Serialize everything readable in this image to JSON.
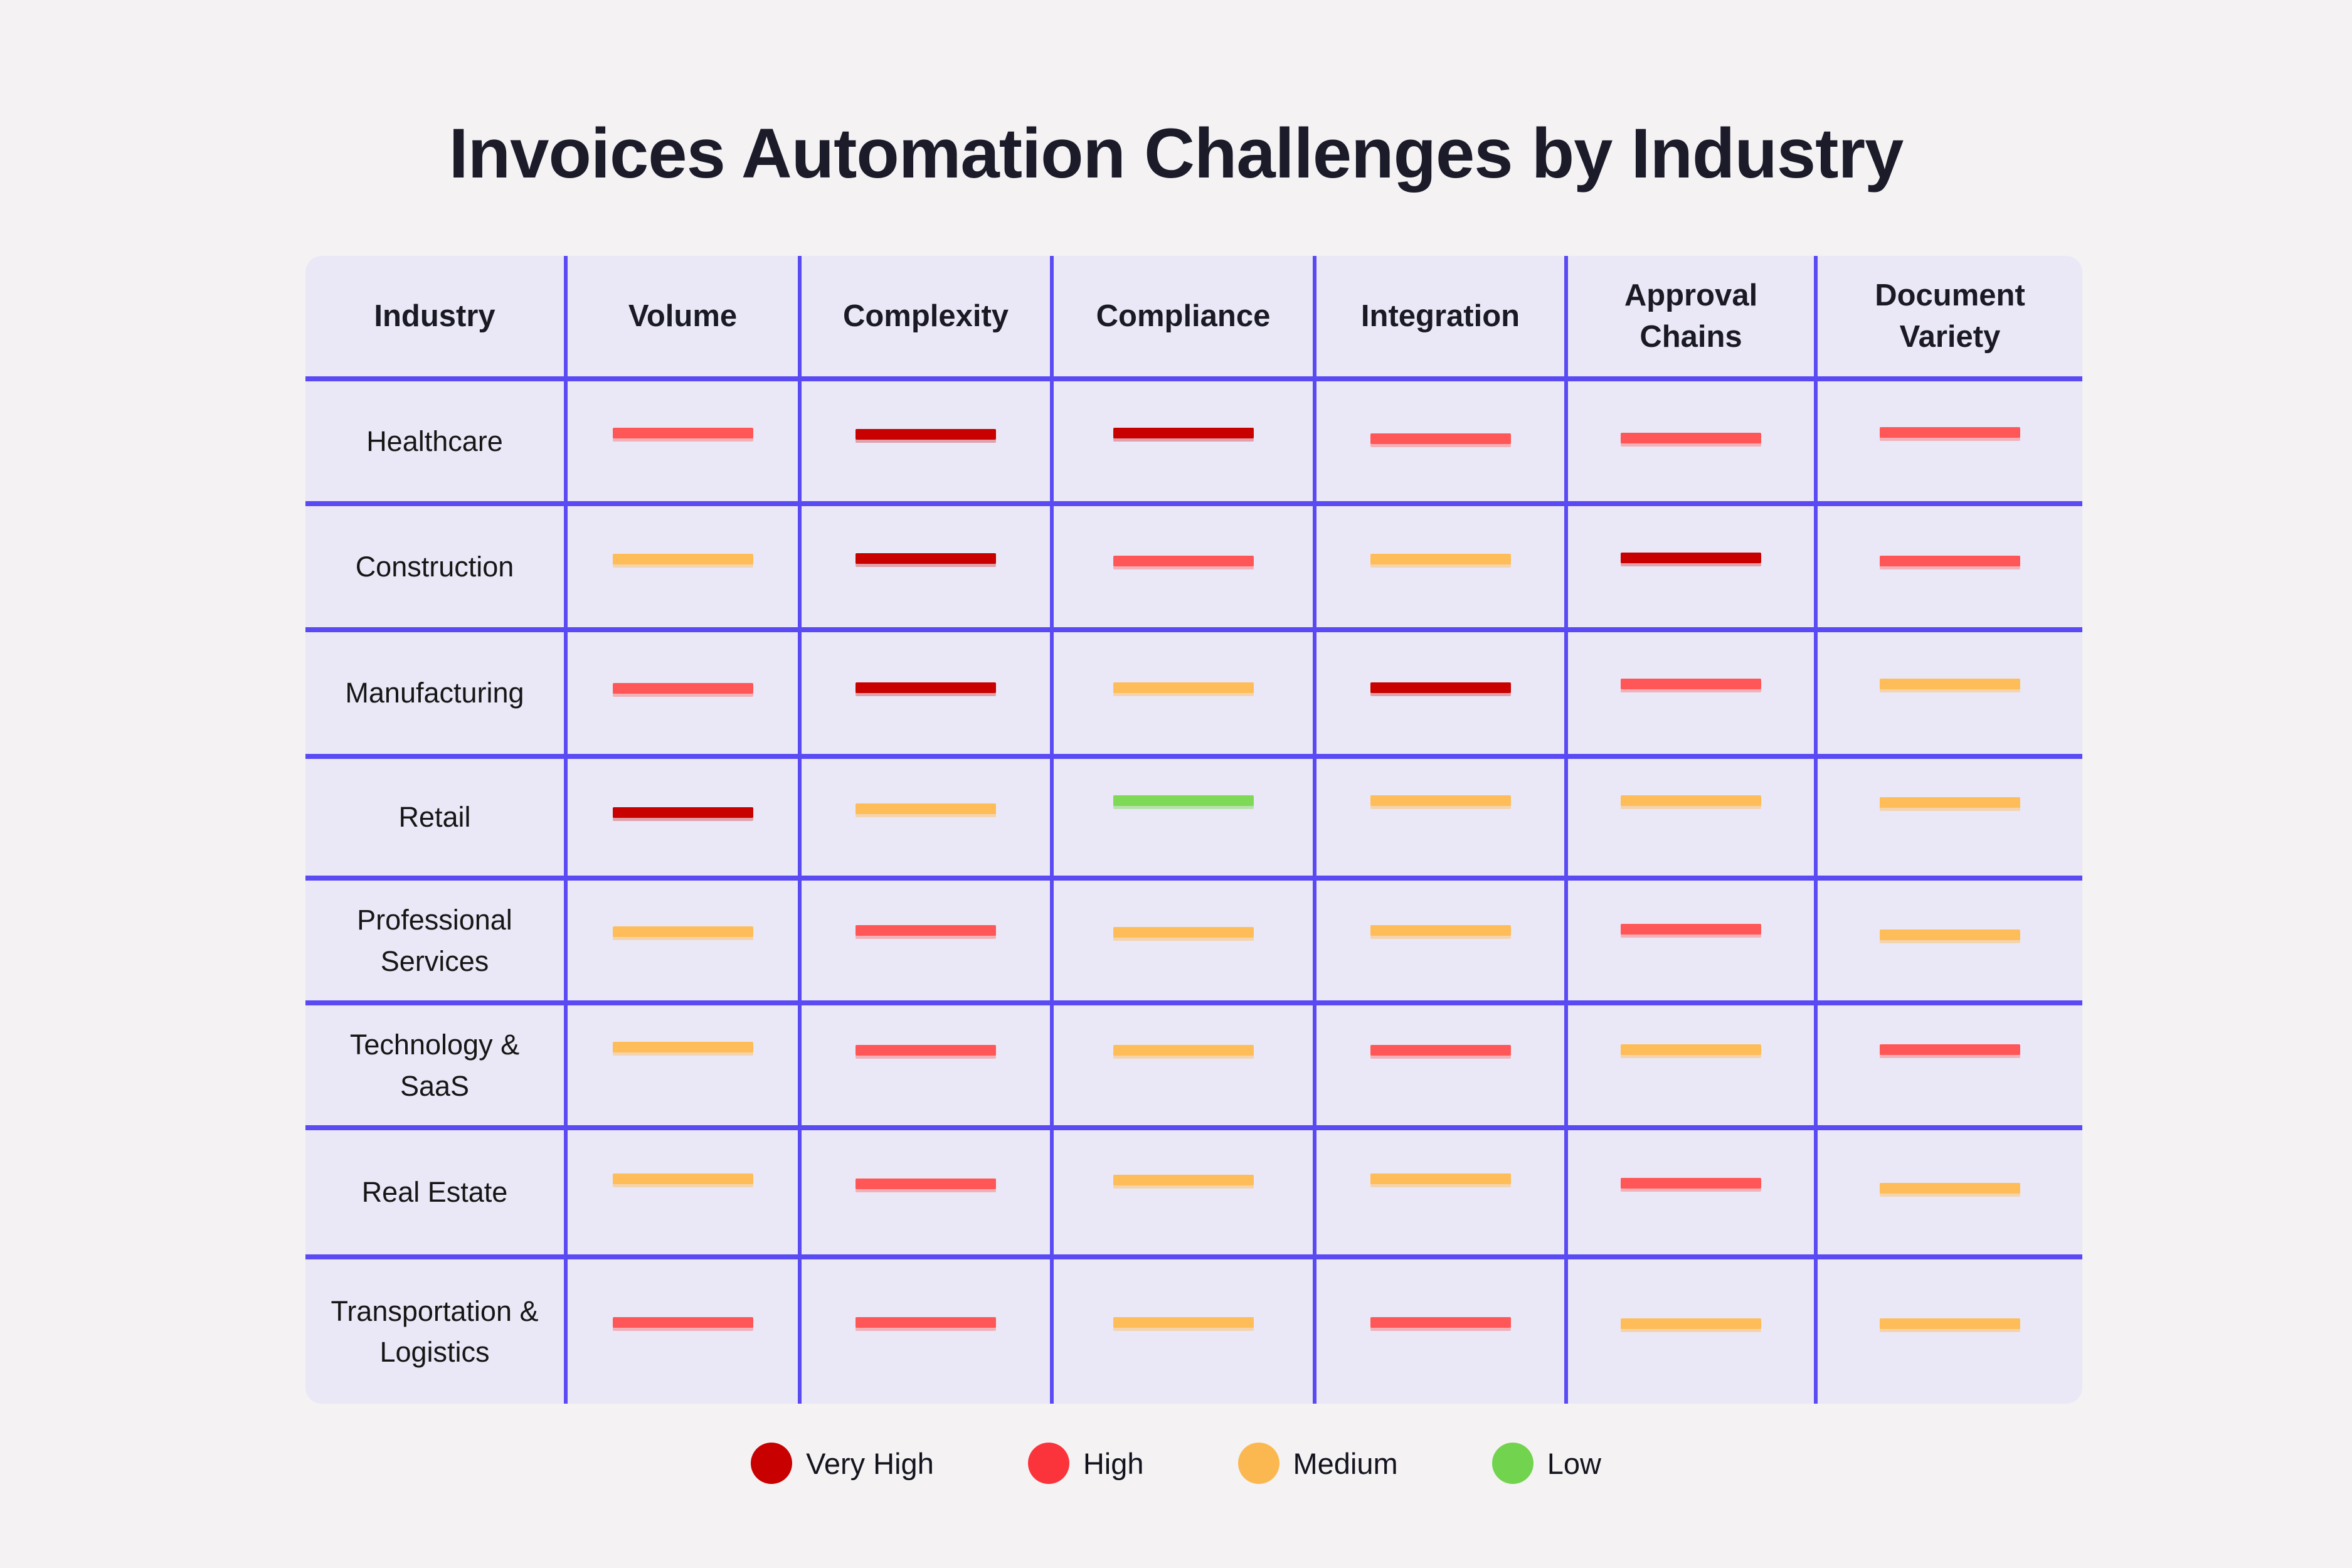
{
  "title": "Invoices Automation Challenges by Industry",
  "colors": {
    "page_bg": "#f4f2f3",
    "cell_bg": "#eae8f6",
    "grid": "#5a4af4",
    "very_high": "#c80000",
    "high": "#ff5757",
    "medium": "#ffbd59",
    "low": "#7ed957"
  },
  "table": {
    "columns": [
      "Industry",
      "Volume",
      "Complexity",
      "Compliance",
      "Integration",
      "Approval Chains",
      "Document Variety"
    ],
    "rows": [
      {
        "industry": "Healthcare",
        "levels": [
          "high",
          "very_high",
          "very_high",
          "high",
          "high",
          "high"
        ]
      },
      {
        "industry": "Construction",
        "levels": [
          "medium",
          "very_high",
          "high",
          "medium",
          "very_high",
          "high"
        ]
      },
      {
        "industry": "Manufacturing",
        "levels": [
          "high",
          "very_high",
          "medium",
          "very_high",
          "high",
          "medium"
        ]
      },
      {
        "industry": "Retail",
        "levels": [
          "very_high",
          "medium",
          "low",
          "medium",
          "medium",
          "medium"
        ]
      },
      {
        "industry": "Professional Services",
        "levels": [
          "medium",
          "high",
          "medium",
          "medium",
          "high",
          "medium"
        ]
      },
      {
        "industry": "Technology & SaaS",
        "levels": [
          "medium",
          "high",
          "medium",
          "high",
          "medium",
          "high"
        ]
      },
      {
        "industry": "Real Estate",
        "levels": [
          "medium",
          "high",
          "medium",
          "medium",
          "high",
          "medium"
        ]
      },
      {
        "industry": "Transportation & Logistics",
        "levels": [
          "high",
          "high",
          "medium",
          "high",
          "medium",
          "medium"
        ]
      }
    ]
  },
  "legend": [
    {
      "label": "Very High",
      "color": "#c80000"
    },
    {
      "label": "High",
      "color": "#fb333b"
    },
    {
      "label": "Medium",
      "color": "#fcb850"
    },
    {
      "label": "Low",
      "color": "#72d34f"
    }
  ],
  "chart_data": {
    "type": "heatmap",
    "title": "Invoices Automation Challenges by Industry",
    "x_categories": [
      "Volume",
      "Complexity",
      "Compliance",
      "Integration",
      "Approval Chains",
      "Document Variety"
    ],
    "y_categories": [
      "Healthcare",
      "Construction",
      "Manufacturing",
      "Retail",
      "Professional Services",
      "Technology & SaaS",
      "Real Estate",
      "Transportation & Logistics"
    ],
    "values": [
      [
        "High",
        "Very High",
        "Very High",
        "High",
        "High",
        "High"
      ],
      [
        "Medium",
        "Very High",
        "High",
        "Medium",
        "Very High",
        "High"
      ],
      [
        "High",
        "Very High",
        "Medium",
        "Very High",
        "High",
        "Medium"
      ],
      [
        "Very High",
        "Medium",
        "Low",
        "Medium",
        "Medium",
        "Medium"
      ],
      [
        "Medium",
        "High",
        "Medium",
        "Medium",
        "High",
        "Medium"
      ],
      [
        "Medium",
        "High",
        "Medium",
        "High",
        "Medium",
        "High"
      ],
      [
        "Medium",
        "High",
        "Medium",
        "Medium",
        "High",
        "Medium"
      ],
      [
        "High",
        "High",
        "Medium",
        "High",
        "Medium",
        "Medium"
      ]
    ],
    "value_scale": {
      "Low": 1,
      "Medium": 2,
      "High": 3,
      "Very High": 4
    },
    "legend_entries": [
      "Very High",
      "High",
      "Medium",
      "Low"
    ],
    "legend_position": "bottom",
    "grid": true
  }
}
